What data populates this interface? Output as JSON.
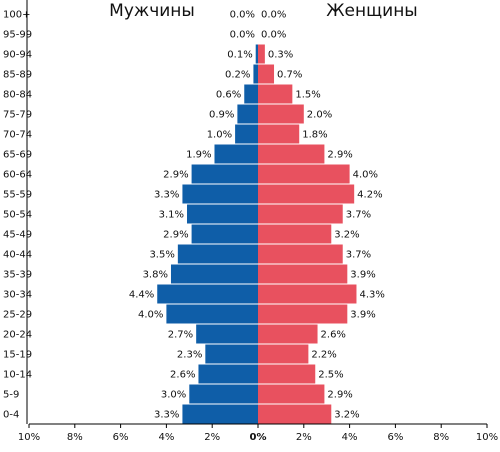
{
  "chart_data": {
    "type": "bar",
    "orientation": "horizontal",
    "layout": "population-pyramid",
    "title": "",
    "left_title": "Мужчины",
    "right_title": "Женщины",
    "categories": [
      "100+",
      "95-99",
      "90-94",
      "85-89",
      "80-84",
      "75-79",
      "70-74",
      "65-69",
      "60-64",
      "55-59",
      "50-54",
      "45-49",
      "40-44",
      "35-39",
      "30-34",
      "25-29",
      "20-24",
      "15-19",
      "10-14",
      "5-9",
      "0-4"
    ],
    "series": [
      {
        "name": "Мужчины",
        "color": "#0f5ea8",
        "values": [
          0.0,
          0.0,
          0.1,
          0.2,
          0.6,
          0.9,
          1.0,
          1.9,
          2.9,
          3.3,
          3.1,
          2.9,
          3.5,
          3.8,
          4.4,
          4.0,
          2.7,
          2.3,
          2.6,
          3.0,
          3.3
        ],
        "labels": [
          "0.0%",
          "0.0%",
          "0.1%",
          "0.2%",
          "0.6%",
          "0.9%",
          "1.0%",
          "1.9%",
          "2.9%",
          "3.3%",
          "3.1%",
          "2.9%",
          "3.5%",
          "3.8%",
          "4.4%",
          "4.0%",
          "2.7%",
          "2.3%",
          "2.6%",
          "3.0%",
          "3.3%"
        ]
      },
      {
        "name": "Женщины",
        "color": "#e8515f",
        "values": [
          0.0,
          0.0,
          0.3,
          0.7,
          1.5,
          2.0,
          1.8,
          2.9,
          4.0,
          4.2,
          3.7,
          3.2,
          3.7,
          3.9,
          4.3,
          3.9,
          2.6,
          2.2,
          2.5,
          2.9,
          3.2
        ],
        "labels": [
          "0.0%",
          "0.0%",
          "0.3%",
          "0.7%",
          "1.5%",
          "2.0%",
          "1.8%",
          "2.9%",
          "4.0%",
          "4.2%",
          "3.7%",
          "3.2%",
          "3.7%",
          "3.9%",
          "4.3%",
          "3.9%",
          "2.6%",
          "2.2%",
          "2.5%",
          "2.9%",
          "3.2%"
        ]
      }
    ],
    "xlim": [
      -10,
      10
    ],
    "xticks": [
      -10,
      -8,
      -6,
      -4,
      -2,
      0,
      2,
      4,
      6,
      8,
      10
    ],
    "xtick_labels": [
      "10%",
      "8%",
      "6%",
      "4%",
      "2%",
      "0%",
      "2%",
      "4%",
      "6%",
      "8%",
      "10%"
    ],
    "xlabel": "",
    "ylabel": "",
    "grid": false,
    "legend": "none"
  }
}
